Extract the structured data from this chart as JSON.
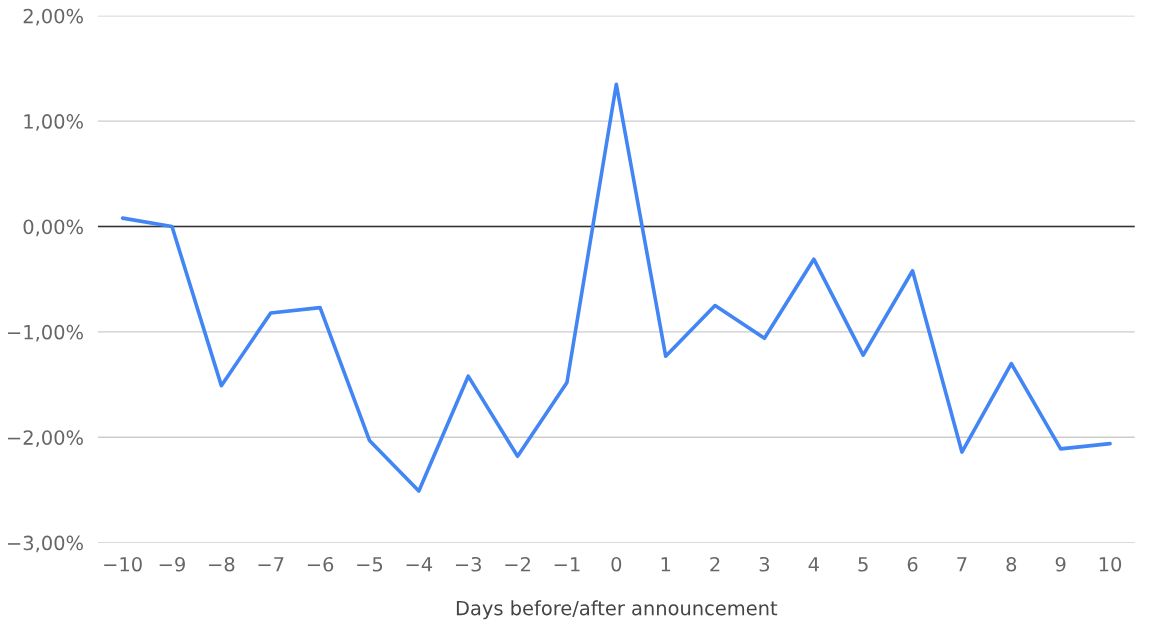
{
  "chart_data": {
    "type": "line",
    "xlabel": "Days before/after announcement",
    "categories": [
      "−10",
      "−9",
      "−8",
      "−7",
      "−6",
      "−5",
      "−4",
      "−3",
      "−2",
      "−1",
      "0",
      "1",
      "2",
      "3",
      "4",
      "5",
      "6",
      "7",
      "8",
      "9",
      "10"
    ],
    "series": [
      {
        "color": "#4285f4",
        "values": [
          0.08,
          0.0,
          -1.51,
          -0.82,
          -0.77,
          -2.03,
          -2.51,
          -1.42,
          -2.18,
          -1.48,
          1.35,
          -1.23,
          -0.75,
          -1.06,
          -0.31,
          -1.22,
          -0.42,
          -2.14,
          -1.3,
          -2.11,
          -2.06
        ]
      }
    ],
    "ylim": [
      -3,
      2
    ],
    "yticks": [
      {
        "value": -3,
        "label": "−3,00%"
      },
      {
        "value": -2,
        "label": "−2,00%"
      },
      {
        "value": -1,
        "label": "−1,00%"
      },
      {
        "value": 0,
        "label": "0,00%"
      },
      {
        "value": 1,
        "label": "1,00%"
      },
      {
        "value": 2,
        "label": "2,00%"
      }
    ],
    "ref_lines": [
      {
        "axis": "y",
        "value": 0,
        "color": "#333333"
      }
    ],
    "grid": "y",
    "marker": "none",
    "line_style": "solid"
  }
}
